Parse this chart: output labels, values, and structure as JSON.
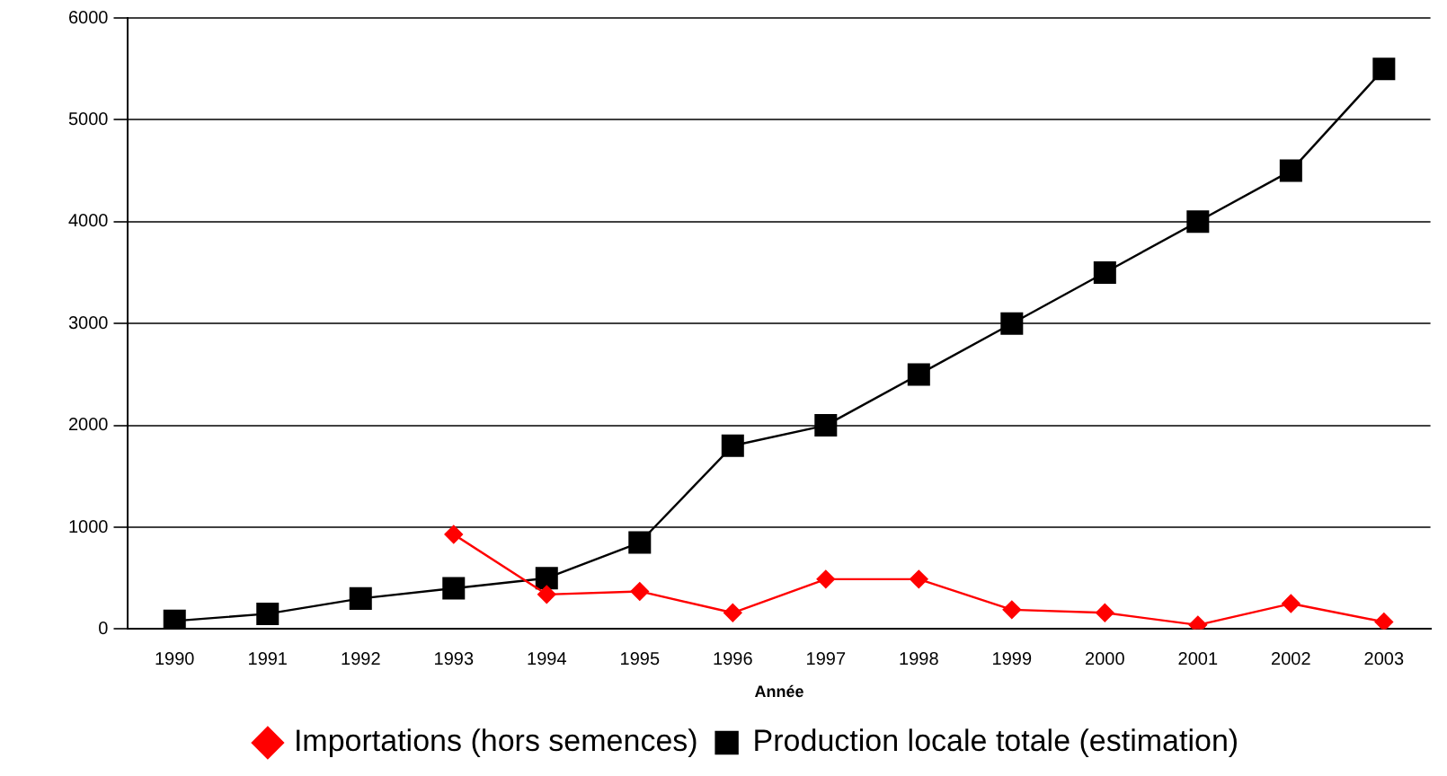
{
  "chart_data": {
    "type": "line",
    "xlabel": "Année",
    "categories": [
      "1990",
      "1991",
      "1992",
      "1993",
      "1994",
      "1995",
      "1996",
      "1997",
      "1998",
      "1999",
      "2000",
      "2001",
      "2002",
      "2003"
    ],
    "series": [
      {
        "name": "Importations (hors semences)",
        "color": "#ff0000",
        "marker": "diamond",
        "values": [
          null,
          null,
          null,
          930,
          340,
          370,
          160,
          490,
          490,
          190,
          160,
          40,
          250,
          70
        ]
      },
      {
        "name": "Production locale totale (estimation)",
        "color": "#000000",
        "marker": "square",
        "values": [
          80,
          150,
          300,
          400,
          500,
          850,
          1800,
          2000,
          2500,
          3000,
          3500,
          4000,
          4500,
          5500
        ]
      }
    ],
    "ylim": [
      0,
      6000
    ],
    "yticks": [
      0,
      1000,
      2000,
      3000,
      4000,
      5000,
      6000
    ],
    "grid": "y",
    "legend": "bottom",
    "line_style": "solid"
  }
}
